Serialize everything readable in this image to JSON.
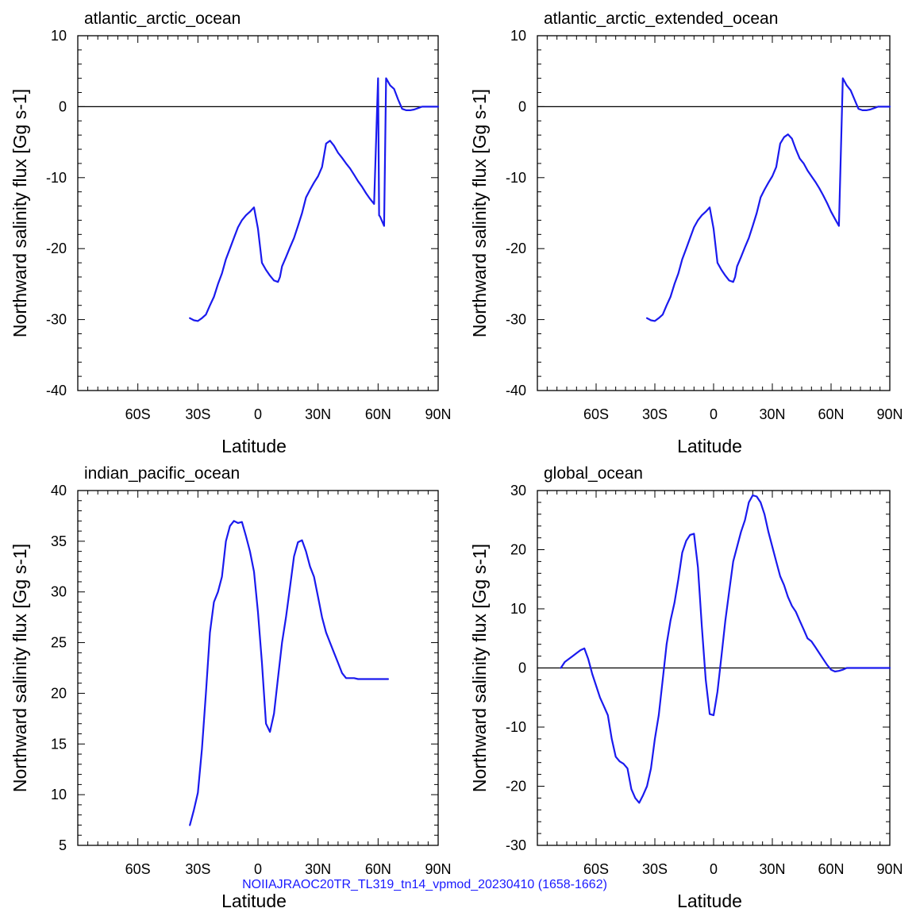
{
  "footer": "NOIIAJRAOC20TR_TL319_tn14_vpmod_20230410 (1658-1662)",
  "colors": {
    "series": "#1a1aee",
    "axis": "#000000",
    "footer": "#1a1aff"
  },
  "chart_data": [
    {
      "type": "line",
      "title": "atlantic_arctic_ocean",
      "xlabel": "Latitude",
      "ylabel": "Northward salinity flux [Gg s-1]",
      "xlim": [
        -90,
        90
      ],
      "ylim": [
        -40,
        10
      ],
      "xticks": [
        -60,
        -30,
        0,
        30,
        60,
        90
      ],
      "xtick_labels": [
        "60S",
        "30S",
        "0",
        "30N",
        "60N",
        "90N"
      ],
      "yticks": [
        -40,
        -30,
        -20,
        -10,
        0,
        10
      ],
      "ytick_labels": [
        "-40",
        "-30",
        "-20",
        "-10",
        "0",
        "10"
      ],
      "zero_line": true,
      "x": [
        -34,
        -32,
        -30,
        -28,
        -26,
        -24,
        -22,
        -20,
        -18,
        -16,
        -14,
        -12,
        -10,
        -8,
        -6,
        -4,
        -2,
        0,
        2,
        4,
        6,
        8,
        10,
        11,
        12,
        14,
        16,
        18,
        20,
        22,
        24,
        26,
        28,
        30,
        32,
        34,
        36,
        38,
        40,
        42,
        44,
        46,
        48,
        50,
        52,
        54,
        56,
        58,
        60,
        60.5,
        61,
        63,
        64,
        66,
        68,
        70,
        72,
        74,
        76,
        78,
        80,
        82,
        84,
        86,
        88,
        90
      ],
      "y": [
        -29.8,
        -30.1,
        -30.2,
        -29.8,
        -29.3,
        -28,
        -26.8,
        -25,
        -23.5,
        -21.5,
        -20,
        -18.5,
        -17,
        -16,
        -15.3,
        -14.8,
        -14.2,
        -17.2,
        -22,
        -23,
        -23.8,
        -24.5,
        -24.7,
        -24,
        -22.5,
        -21.2,
        -19.8,
        -18.5,
        -16.8,
        -15,
        -12.8,
        -11.7,
        -10.7,
        -9.8,
        -8.5,
        -5.2,
        -4.8,
        -5.5,
        -6.5,
        -7.2,
        -8,
        -8.7,
        -9.6,
        -10.5,
        -11.3,
        -12.2,
        -13,
        -13.7,
        4,
        -15.3,
        -15.5,
        -16.8,
        4,
        3,
        2.5,
        1,
        -0.3,
        -0.5,
        -0.5,
        -0.4,
        -0.2,
        0,
        0,
        0,
        0,
        0
      ]
    },
    {
      "type": "line",
      "title": "atlantic_arctic_extended_ocean",
      "xlabel": "Latitude",
      "ylabel": "Northward salinity flux [Gg s-1]",
      "xlim": [
        -90,
        90
      ],
      "ylim": [
        -40,
        10
      ],
      "xticks": [
        -60,
        -30,
        0,
        30,
        60,
        90
      ],
      "xtick_labels": [
        "60S",
        "30S",
        "0",
        "30N",
        "60N",
        "90N"
      ],
      "yticks": [
        -40,
        -30,
        -20,
        -10,
        0,
        10
      ],
      "ytick_labels": [
        "-40",
        "-30",
        "-20",
        "-10",
        "0",
        "10"
      ],
      "zero_line": true,
      "x": [
        -34,
        -32,
        -30,
        -28,
        -26,
        -24,
        -22,
        -20,
        -18,
        -16,
        -14,
        -12,
        -10,
        -8,
        -6,
        -4,
        -2,
        0,
        2,
        4,
        6,
        8,
        10,
        11,
        12,
        14,
        16,
        18,
        20,
        22,
        24,
        26,
        28,
        30,
        32,
        34,
        36,
        38,
        40,
        42,
        44,
        46,
        48,
        50,
        52,
        54,
        56,
        58,
        60,
        62,
        64,
        66,
        67,
        68,
        70,
        72,
        74,
        76,
        78,
        80,
        82,
        84,
        86,
        88,
        90
      ],
      "y": [
        -29.8,
        -30.1,
        -30.2,
        -29.8,
        -29.3,
        -28,
        -26.8,
        -25,
        -23.5,
        -21.5,
        -20,
        -18.5,
        -17,
        -16,
        -15.3,
        -14.8,
        -14.2,
        -17.2,
        -22,
        -23,
        -23.8,
        -24.5,
        -24.7,
        -24,
        -22.5,
        -21.2,
        -19.8,
        -18.5,
        -16.8,
        -15,
        -12.8,
        -11.7,
        -10.7,
        -9.8,
        -8.5,
        -5.2,
        -4.3,
        -3.9,
        -4.5,
        -6,
        -7.3,
        -8,
        -9,
        -9.8,
        -10.6,
        -11.5,
        -12.5,
        -13.6,
        -14.8,
        -15.8,
        -16.8,
        4,
        3.5,
        3,
        2.3,
        1,
        -0.3,
        -0.5,
        -0.5,
        -0.4,
        -0.2,
        0,
        0,
        0,
        0
      ]
    },
    {
      "type": "line",
      "title": "indian_pacific_ocean",
      "xlabel": "Latitude",
      "ylabel": "Northward salinity flux [Gg s-1]",
      "xlim": [
        -90,
        90
      ],
      "ylim": [
        5,
        40
      ],
      "xticks": [
        -60,
        -30,
        0,
        30,
        60,
        90
      ],
      "xtick_labels": [
        "60S",
        "30S",
        "0",
        "30N",
        "60N",
        "90N"
      ],
      "yticks": [
        5,
        10,
        15,
        20,
        25,
        30,
        35,
        40
      ],
      "ytick_labels": [
        "5",
        "10",
        "15",
        "20",
        "25",
        "30",
        "35",
        "40"
      ],
      "zero_line": false,
      "x": [
        -34,
        -32,
        -30,
        -28,
        -26,
        -24,
        -22,
        -20,
        -18,
        -16,
        -14,
        -12,
        -10,
        -8,
        -6,
        -4,
        -2,
        0,
        2,
        4,
        6,
        8,
        10,
        12,
        14,
        16,
        18,
        20,
        22,
        24,
        26,
        28,
        30,
        32,
        34,
        36,
        38,
        40,
        42,
        44,
        46,
        48,
        50,
        52,
        54,
        56,
        58,
        60,
        62,
        64,
        65
      ],
      "y": [
        7,
        8.5,
        10.2,
        14.5,
        20,
        26,
        29,
        30,
        31.5,
        35,
        36.5,
        37,
        36.8,
        36.9,
        35.5,
        34,
        32,
        28,
        23,
        17,
        16.2,
        18,
        21.5,
        25,
        27.5,
        30.5,
        33.5,
        34.9,
        35.1,
        34,
        32.5,
        31.5,
        29.5,
        27.5,
        26,
        25,
        24,
        23,
        22,
        21.5,
        21.5,
        21.5,
        21.4,
        21.4,
        21.4,
        21.4,
        21.4,
        21.4,
        21.4,
        21.4,
        21.4
      ]
    },
    {
      "type": "line",
      "title": "global_ocean",
      "xlabel": "Latitude",
      "ylabel": "Northward salinity flux [Gg s-1]",
      "xlim": [
        -90,
        90
      ],
      "ylim": [
        -30,
        30
      ],
      "xticks": [
        -60,
        -30,
        0,
        30,
        60,
        90
      ],
      "xtick_labels": [
        "60S",
        "30S",
        "0",
        "30N",
        "60N",
        "90N"
      ],
      "yticks": [
        -30,
        -20,
        -10,
        0,
        10,
        20,
        30
      ],
      "ytick_labels": [
        "-30",
        "-20",
        "-10",
        "0",
        "10",
        "20",
        "30"
      ],
      "zero_line": true,
      "x": [
        -78,
        -76,
        -74,
        -72,
        -70,
        -68,
        -66,
        -64,
        -62,
        -60,
        -58,
        -56,
        -54,
        -52,
        -50,
        -48,
        -46,
        -44,
        -42,
        -40,
        -38,
        -36,
        -34,
        -32,
        -30,
        -28,
        -26,
        -24,
        -22,
        -20,
        -18,
        -16,
        -14,
        -12,
        -10,
        -8,
        -6,
        -4,
        -2,
        0,
        2,
        4,
        6,
        8,
        10,
        12,
        14,
        16,
        18,
        20,
        22,
        24,
        26,
        28,
        30,
        32,
        34,
        36,
        38,
        40,
        42,
        44,
        46,
        48,
        50,
        52,
        54,
        56,
        58,
        60,
        62,
        64,
        66,
        68,
        70,
        72,
        74,
        76,
        78,
        80,
        82,
        84,
        86,
        88,
        90
      ],
      "y": [
        0,
        1,
        1.5,
        2,
        2.5,
        3,
        3.3,
        1.5,
        -1,
        -3,
        -5,
        -6.5,
        -8,
        -12,
        -15,
        -15.8,
        -16.2,
        -17,
        -20.5,
        -22,
        -22.8,
        -21.5,
        -20,
        -17,
        -12,
        -8,
        -2,
        4,
        8,
        11,
        15,
        19.5,
        21.5,
        22.5,
        22.7,
        17,
        7,
        -2,
        -7.8,
        -8,
        -4,
        2,
        8,
        13,
        18,
        20.5,
        23,
        25,
        28,
        29.2,
        29,
        28,
        26,
        23,
        20.5,
        18,
        15.5,
        14,
        12,
        10.5,
        9.5,
        8,
        6.5,
        5,
        4.5,
        3.5,
        2.5,
        1.5,
        0.5,
        -0.3,
        -0.6,
        -0.5,
        -0.3,
        0,
        0,
        0,
        0,
        0,
        0,
        0,
        0,
        0,
        0,
        0,
        0
      ]
    }
  ]
}
